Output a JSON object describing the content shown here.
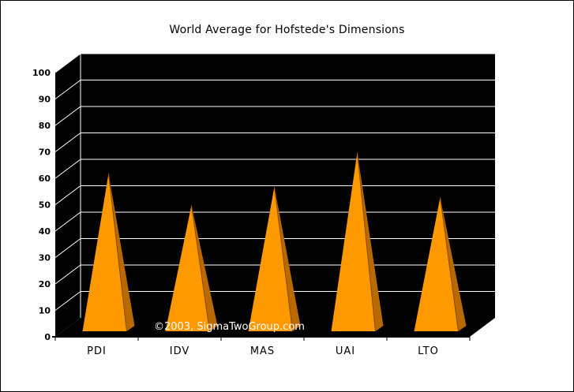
{
  "chart_data": {
    "type": "bar",
    "title": "World Average for Hofstede's Dimensions",
    "categories": [
      "PDI",
      "IDV",
      "MAS",
      "UAI",
      "LTO"
    ],
    "values": [
      57,
      45,
      52,
      65,
      48
    ],
    "ylim": [
      0,
      100
    ],
    "yticks": [
      0,
      10,
      20,
      30,
      40,
      50,
      60,
      70,
      80,
      90,
      100
    ],
    "grid": true,
    "legend": "none",
    "style": "3d-pyramid",
    "background": "#000000",
    "bar_color": "#FF9900",
    "bar_shade_color": "#B86A00",
    "watermark": "©2003, SigmaTwoGroup.com"
  }
}
